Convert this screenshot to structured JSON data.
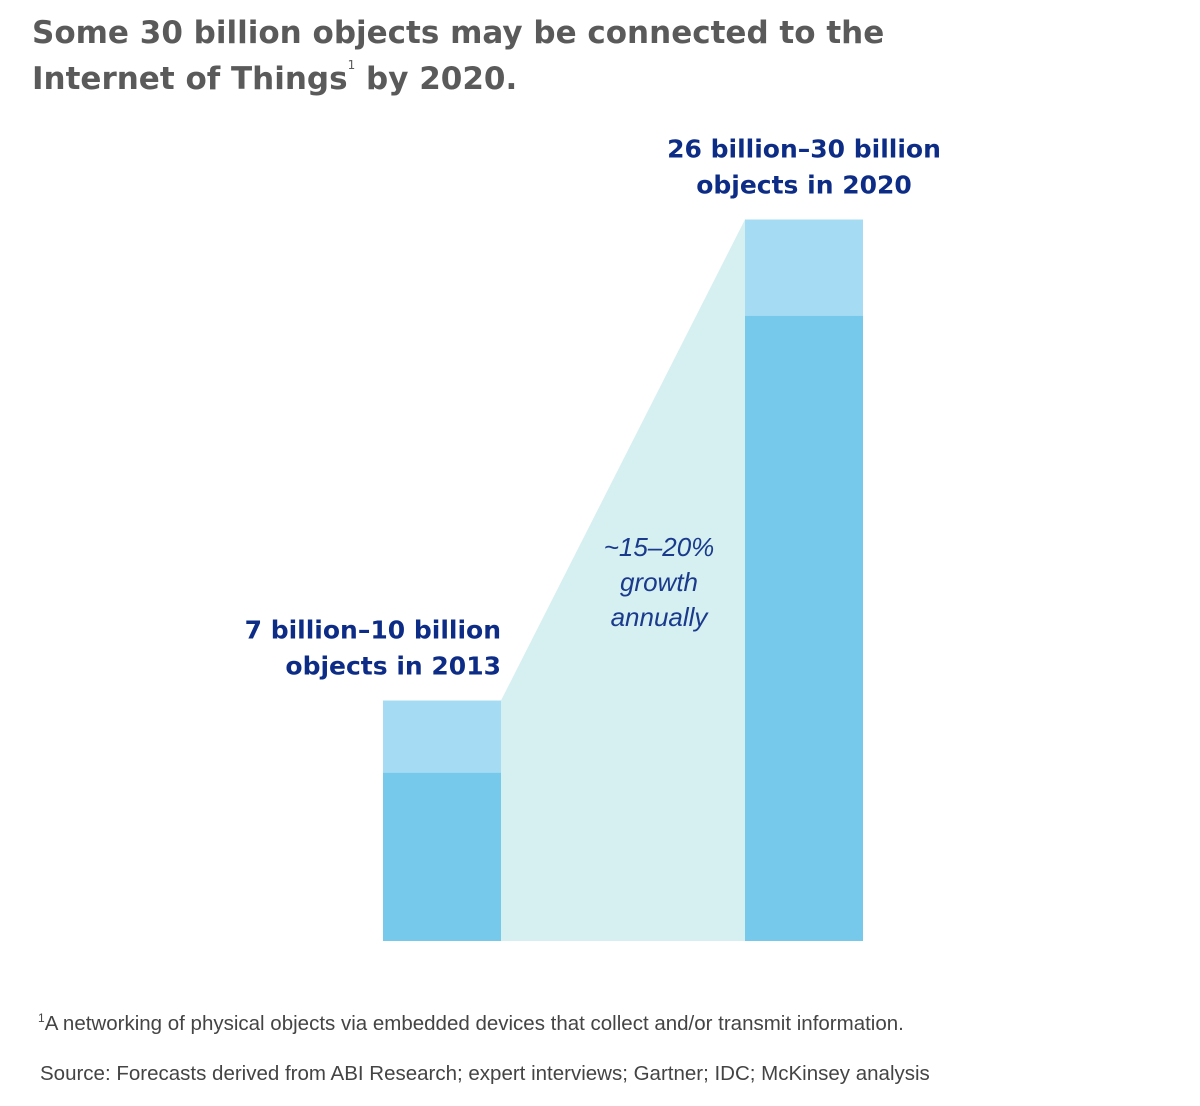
{
  "title": {
    "line1": "Some 30 billion objects may be connected to the",
    "line2_prefix": "Internet of Things",
    "footnote_marker": "1",
    "line2_suffix": " by 2020."
  },
  "footnote": {
    "marker": "1",
    "text": "A networking of physical objects via embedded devices that collect and/or transmit information."
  },
  "source": "Source: Forecasts derived from ABI Research; expert interviews; Gartner; IDC; McKinsey analysis",
  "colors": {
    "bar_low": "#77c9ec",
    "bar_range": "#a5dcf3",
    "growth_band": "#d6eff1",
    "label": "#0d2c86"
  },
  "chart_data": {
    "type": "bar",
    "title": "",
    "xlabel": "",
    "ylabel": "",
    "unit": "billion objects",
    "ylim": [
      0,
      30
    ],
    "grid": false,
    "legend": "none",
    "categories": [
      "2013",
      "2020"
    ],
    "series": [
      {
        "values": [
          7,
          26
        ]
      },
      {
        "values": [
          10,
          30
        ]
      }
    ],
    "bars": [
      {
        "year": "2013",
        "low": 7,
        "high": 10,
        "label_lines": [
          "7 billion–10 billion",
          "objects in 2013"
        ]
      },
      {
        "year": "2020",
        "low": 26,
        "high": 30,
        "label_lines": [
          "26 billion–30 billion",
          "objects in 2020"
        ]
      }
    ],
    "annotation_lines": [
      "~15–20%",
      "growth",
      "annually"
    ]
  }
}
